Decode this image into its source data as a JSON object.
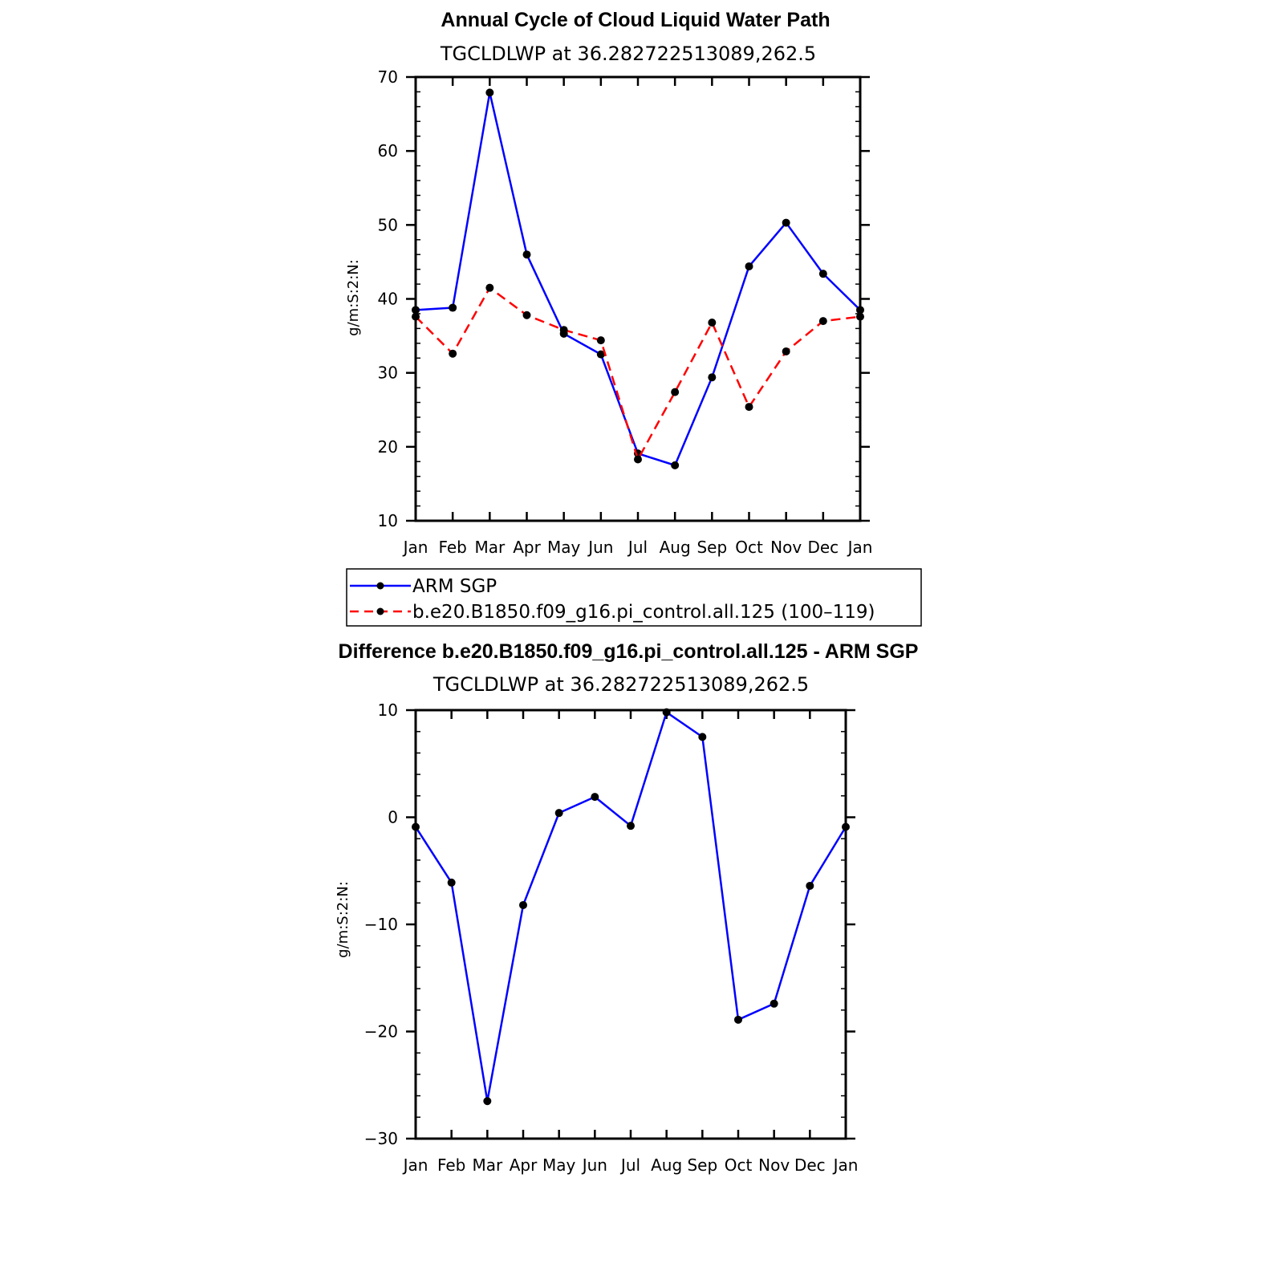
{
  "chart_data": [
    {
      "type": "line",
      "title": "Annual Cycle of Cloud Liquid Water Path",
      "subtitle": "TGCLDLWP  at  36.282722513089,262.5",
      "ylabel": "g/m:S:2:N:",
      "xlabel": "",
      "ylim": [
        10,
        70
      ],
      "yticks": [
        10,
        20,
        30,
        40,
        50,
        60,
        70
      ],
      "categories": [
        "Jan",
        "Feb",
        "Mar",
        "Apr",
        "May",
        "Jun",
        "Jul",
        "Aug",
        "Sep",
        "Oct",
        "Nov",
        "Dec",
        "Jan"
      ],
      "legend": "below",
      "series": [
        {
          "name": "ARM SGP",
          "color": "#0000ff",
          "dash": "solid",
          "values": [
            38.5,
            38.8,
            67.9,
            46.0,
            35.3,
            32.5,
            19.1,
            17.5,
            29.4,
            44.4,
            50.3,
            43.4,
            38.5
          ]
        },
        {
          "name": "b.e20.B1850.f09_g16.pi_control.all.125 (100–119)",
          "color": "#ff0000",
          "dash": "dashed",
          "values": [
            37.6,
            32.6,
            41.5,
            37.8,
            35.8,
            34.4,
            18.3,
            27.4,
            36.8,
            25.4,
            32.9,
            37.0,
            37.6
          ]
        }
      ]
    },
    {
      "type": "line",
      "title": "Difference b.e20.B1850.f09_g16.pi_control.all.125 - ARM SGP",
      "subtitle": "TGCLDLWP  at  36.282722513089,262.5",
      "ylabel": "g/m:S:2:N:",
      "xlabel": "",
      "ylim": [
        -30,
        10
      ],
      "yticks": [
        -30,
        -20,
        -10,
        0,
        10
      ],
      "ytick_labels": [
        "−30",
        "−20",
        "−10",
        "0",
        "10"
      ],
      "categories": [
        "Jan",
        "Feb",
        "Mar",
        "Apr",
        "May",
        "Jun",
        "Jul",
        "Aug",
        "Sep",
        "Oct",
        "Nov",
        "Dec",
        "Jan"
      ],
      "series": [
        {
          "color": "#0000ff",
          "dash": "solid",
          "values": [
            -0.9,
            -6.1,
            -26.5,
            -8.2,
            0.4,
            1.9,
            -0.8,
            9.8,
            7.5,
            -18.9,
            -17.4,
            -6.4,
            -0.9
          ]
        }
      ]
    }
  ]
}
